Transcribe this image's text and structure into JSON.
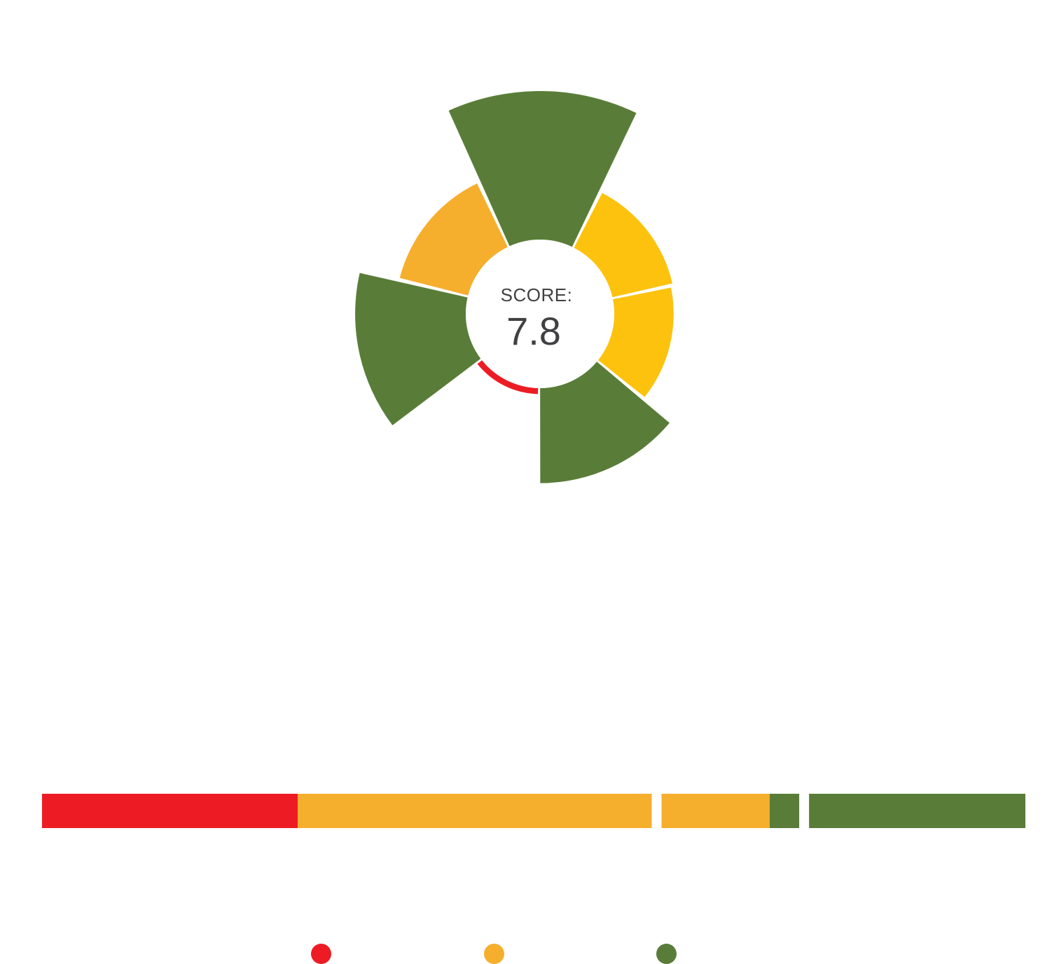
{
  "score": {
    "label": "SCORE:",
    "value": "7.8"
  },
  "colors": {
    "red": "#ed1c24",
    "orange": "#f6ae2d",
    "yellow": "#fdc20e",
    "green": "#597d38",
    "text": "#414042"
  },
  "chart_data": [
    {
      "type": "polar-area",
      "max_value": 10,
      "segments": [
        {
          "value": 10.0,
          "color": "green"
        },
        {
          "value": 6.1,
          "color": "yellow"
        },
        {
          "value": 6.0,
          "color": "yellow"
        },
        {
          "value": 7.6,
          "color": "green"
        },
        {
          "value": 3.6,
          "color": "red"
        },
        {
          "value": 8.3,
          "color": "green"
        },
        {
          "value": 6.5,
          "color": "orange"
        }
      ]
    },
    {
      "type": "bar",
      "orientation": "horizontal-stacked",
      "scale": [
        0,
        10
      ],
      "segments": [
        {
          "from": 0.0,
          "to": 2.6,
          "color": "red"
        },
        {
          "from": 2.6,
          "to": 6.2,
          "color": "orange"
        },
        {
          "from": 6.3,
          "to": 7.4,
          "color": "orange"
        },
        {
          "from": 7.4,
          "to": 7.7,
          "color": "green"
        },
        {
          "from": 7.8,
          "to": 10.0,
          "color": "green"
        }
      ]
    }
  ],
  "legend": [
    {
      "color": "red"
    },
    {
      "color": "orange"
    },
    {
      "color": "green"
    }
  ]
}
